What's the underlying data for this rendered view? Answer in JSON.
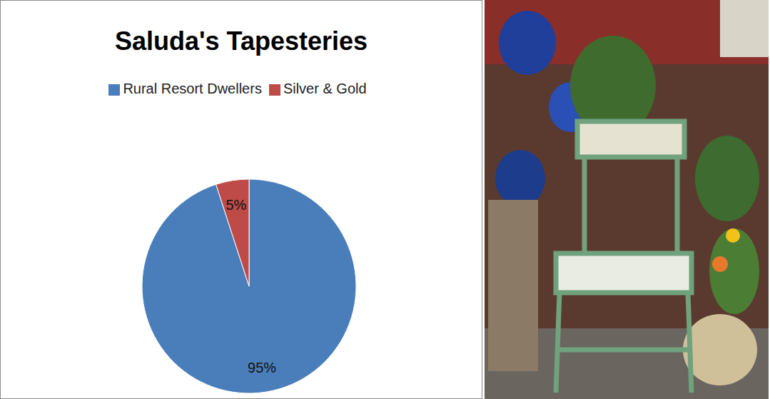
{
  "chart_data": {
    "type": "pie",
    "title": "Saluda's Tapesteries",
    "categories": [
      "Rural Resort Dwellers",
      "Silver & Gold"
    ],
    "values": [
      95,
      5
    ],
    "value_labels": [
      "95%",
      "5%"
    ],
    "colors": [
      "#4a7ebb",
      "#be4b48"
    ],
    "data_labels": true,
    "legend": "top"
  }
}
